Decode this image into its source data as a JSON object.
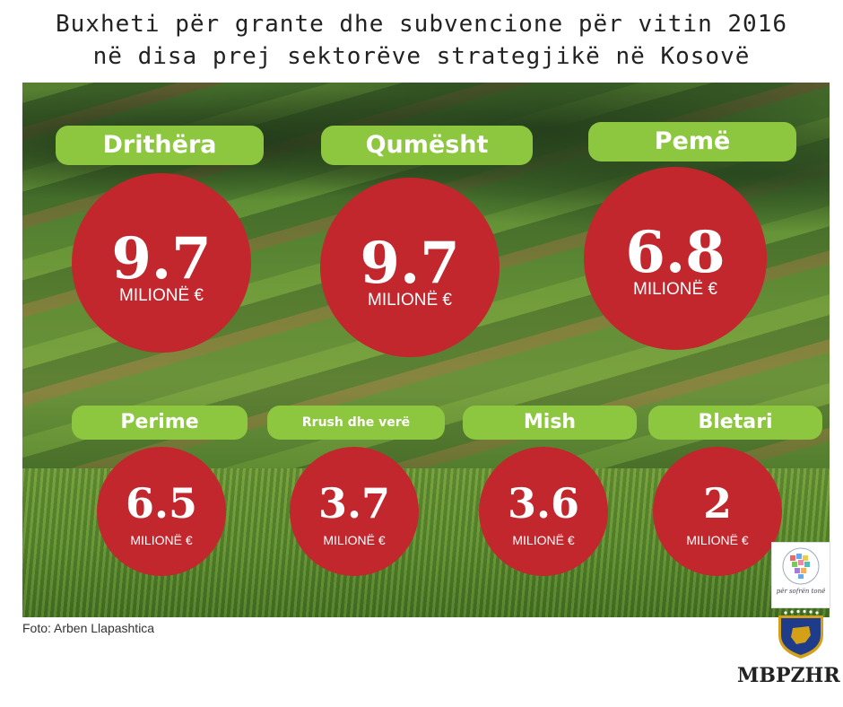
{
  "title": {
    "line1": "Buxheti për grante dhe subvencione për vitin 2016",
    "line2": "në disa prej sektorëve strategjikë në Kosovë"
  },
  "sectors": [
    {
      "label": "Drithëra",
      "value": "9.7",
      "unit": "MILIONË €"
    },
    {
      "label": "Qumësht",
      "value": "9.7",
      "unit": "MILIONË €"
    },
    {
      "label": "Pemë",
      "value": "6.8",
      "unit": "MILIONË €"
    },
    {
      "label": "Perime",
      "value": "6.5",
      "unit": "MILIONË €"
    },
    {
      "label": "Rrush dhe verë",
      "value": "3.7",
      "unit": "MILIONË €"
    },
    {
      "label": "Mish",
      "value": "3.6",
      "unit": "MILIONË  €"
    },
    {
      "label": "Bletari",
      "value": "2",
      "unit": "MILIONË €"
    }
  ],
  "photo_credit": "Foto: Arben Llapashtica",
  "logo_caption": "për sofrën tonë",
  "organization": "MBPZHR",
  "colors": {
    "pill": "#8dc63f",
    "circle": "#c1272d",
    "emblem": "#1f3c8a",
    "gold": "#d4a017"
  }
}
